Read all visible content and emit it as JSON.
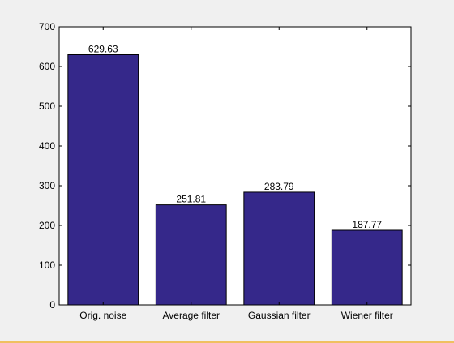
{
  "chart_data": {
    "type": "bar",
    "categories": [
      "Orig. noise",
      "Average filter",
      "Gaussian filter",
      "Wiener filter"
    ],
    "values": [
      629.63,
      251.81,
      283.79,
      187.77
    ],
    "value_labels": [
      "629.63",
      "251.81",
      "283.79",
      "187.77"
    ],
    "ylim": [
      0,
      700
    ],
    "yticks": [
      0,
      100,
      200,
      300,
      400,
      500,
      600,
      700
    ],
    "ytick_labels": [
      "0",
      "100",
      "200",
      "300",
      "400",
      "500",
      "600",
      "700"
    ],
    "title": "",
    "xlabel": "",
    "ylabel": "",
    "grid": false,
    "bar_color": "#35288a",
    "background_color": "#f0f0f0",
    "plot_color": "#ffffff"
  }
}
